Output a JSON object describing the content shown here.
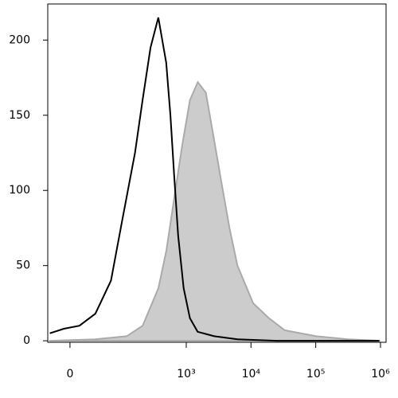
{
  "chart_data": {
    "type": "histogram-overlay",
    "xscale": "biexponential",
    "xlim": [
      -28,
      1220000
    ],
    "ylim": [
      -1,
      224
    ],
    "xticks": [
      0,
      {
        "value": 1000,
        "label": "10³"
      },
      {
        "value": 10000,
        "label": "10⁴"
      },
      {
        "value": 100000,
        "label": "10⁵"
      },
      {
        "value": 1000000,
        "label": "10⁶"
      }
    ],
    "yticks": [
      0,
      50,
      100,
      150,
      200
    ],
    "series": [
      {
        "color": "#aaaaaa",
        "fill": "#cccccc",
        "x": [
          -25,
          33,
          118,
          211,
          371,
          493,
          653,
          865,
          1140,
          1510,
          2006,
          2655,
          3510,
          4660,
          6180,
          10800,
          19000,
          33300,
          102000,
          314000,
          960000
        ],
        "values": [
          0,
          1,
          3,
          10,
          35,
          60,
          95,
          130,
          160,
          172,
          165,
          135,
          105,
          75,
          50,
          25,
          15,
          7,
          3,
          1,
          0
        ]
      },
      {
        "color": "#000000",
        "x": [
          -25,
          -7,
          11,
          33,
          65,
          100,
          160,
          210,
          280,
          370,
          490,
          570,
          650,
          750,
          910,
          1140,
          1500,
          2700,
          6200,
          25000,
          960000
        ],
        "values": [
          5,
          8,
          10,
          18,
          40,
          80,
          125,
          160,
          195,
          215,
          185,
          150,
          110,
          70,
          35,
          15,
          6,
          3,
          1,
          0,
          0
        ]
      }
    ]
  }
}
